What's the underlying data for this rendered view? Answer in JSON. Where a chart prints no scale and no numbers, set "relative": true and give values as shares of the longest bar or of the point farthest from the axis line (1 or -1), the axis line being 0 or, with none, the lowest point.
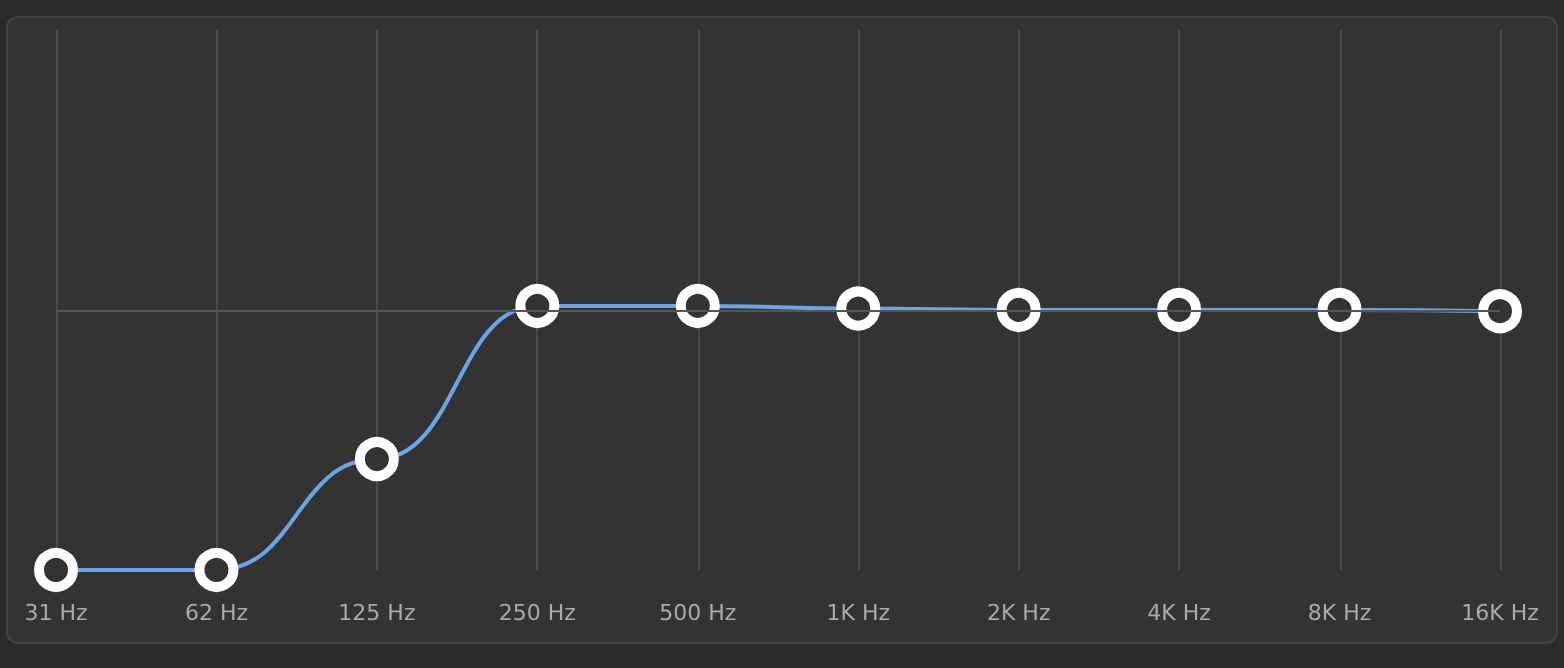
{
  "chart_data": {
    "type": "line",
    "relative": true,
    "categories": [
      "31 Hz",
      "62 Hz",
      "125 Hz",
      "250 Hz",
      "500 Hz",
      "1K Hz",
      "2K Hz",
      "4K Hz",
      "8K Hz",
      "16K Hz"
    ],
    "series": [
      {
        "color": "#6aa5e8",
        "values": [
          0,
          0,
          0.42,
          1,
          1,
          0.99,
          0.985,
          0.985,
          0.985,
          0.98
        ]
      }
    ],
    "grid": "x",
    "marker": "circle",
    "line_style": "solid",
    "ref_lines": [
      {
        "axis": "y",
        "value": 0.985,
        "color": "#555555"
      }
    ]
  }
}
